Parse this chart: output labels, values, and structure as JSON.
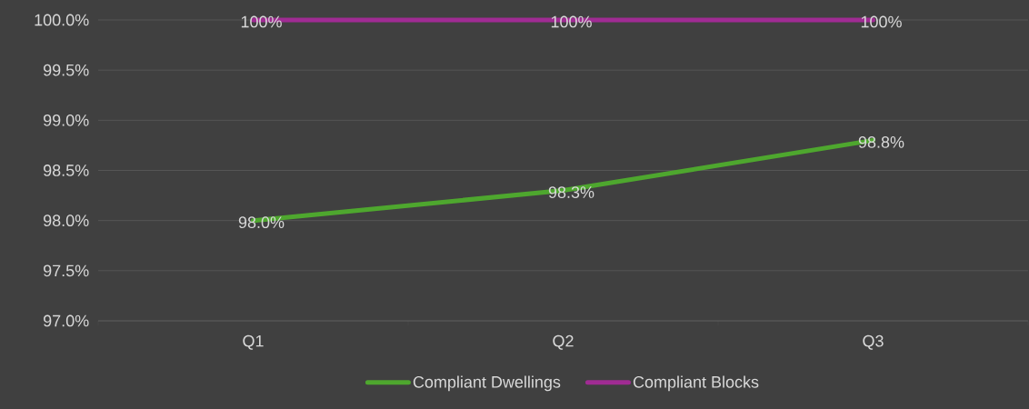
{
  "chart_data": {
    "type": "line",
    "categories": [
      "Q1",
      "Q2",
      "Q3"
    ],
    "series": [
      {
        "name": "Compliant Dwellings",
        "color": "#4ea72e",
        "values": [
          98.0,
          98.3,
          98.8
        ],
        "value_labels": [
          "98.0%",
          "98.3%",
          "98.8%"
        ]
      },
      {
        "name": "Compliant Blocks",
        "color": "#a02b93",
        "values": [
          100,
          100,
          100
        ],
        "value_labels": [
          "100%",
          "100%",
          "100%"
        ]
      }
    ],
    "ylim": [
      97,
      100
    ],
    "yticks": [
      {
        "value": 97,
        "label": "97.0%"
      },
      {
        "value": 97.5,
        "label": "97.5%"
      },
      {
        "value": 98,
        "label": "98.0%"
      },
      {
        "value": 98.5,
        "label": "98.5%"
      },
      {
        "value": 99,
        "label": "99.0%"
      },
      {
        "value": 99.5,
        "label": "99.5%"
      },
      {
        "value": 100,
        "label": "100.0%"
      }
    ],
    "grid": "y",
    "legend": "bottom",
    "marker": "none",
    "line_style": "solid"
  }
}
